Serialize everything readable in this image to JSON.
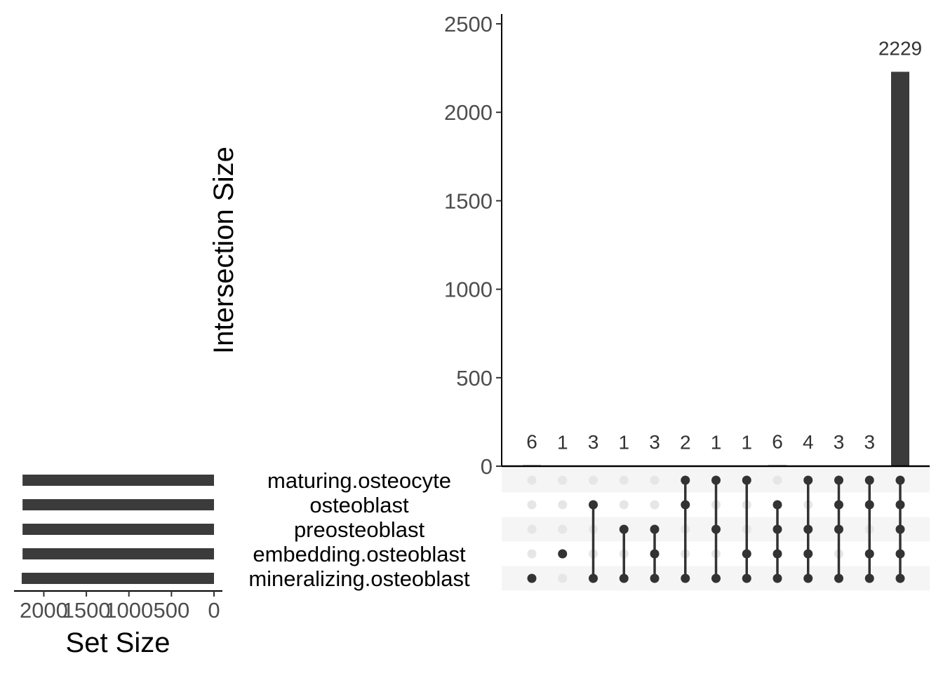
{
  "chart_data": {
    "type": "bar",
    "ylabel": "Intersection Size",
    "ylim": [
      0,
      2500
    ],
    "yticks": [
      0,
      500,
      1000,
      1500,
      2000,
      2500
    ],
    "sets": [
      "maturing.osteocyte",
      "osteoblast",
      "preosteoblast",
      "embedding.osteoblast",
      "mineralizing.osteoblast"
    ],
    "intersections": [
      {
        "members": [
          "mineralizing.osteoblast"
        ],
        "value": 6
      },
      {
        "members": [
          "embedding.osteoblast"
        ],
        "value": 1
      },
      {
        "members": [
          "osteoblast",
          "mineralizing.osteoblast"
        ],
        "value": 3
      },
      {
        "members": [
          "preosteoblast",
          "mineralizing.osteoblast"
        ],
        "value": 1
      },
      {
        "members": [
          "preosteoblast",
          "embedding.osteoblast",
          "mineralizing.osteoblast"
        ],
        "value": 3
      },
      {
        "members": [
          "maturing.osteocyte",
          "osteoblast",
          "mineralizing.osteoblast"
        ],
        "value": 2
      },
      {
        "members": [
          "maturing.osteocyte",
          "preosteoblast",
          "mineralizing.osteoblast"
        ],
        "value": 1
      },
      {
        "members": [
          "maturing.osteocyte",
          "embedding.osteoblast",
          "mineralizing.osteoblast"
        ],
        "value": 1
      },
      {
        "members": [
          "osteoblast",
          "preosteoblast",
          "embedding.osteoblast",
          "mineralizing.osteoblast"
        ],
        "value": 6
      },
      {
        "members": [
          "maturing.osteocyte",
          "preosteoblast",
          "embedding.osteoblast",
          "mineralizing.osteoblast"
        ],
        "value": 4
      },
      {
        "members": [
          "maturing.osteocyte",
          "osteoblast",
          "preosteoblast",
          "mineralizing.osteoblast"
        ],
        "value": 3
      },
      {
        "members": [
          "maturing.osteocyte",
          "osteoblast",
          "embedding.osteoblast",
          "mineralizing.osteoblast"
        ],
        "value": 3
      },
      {
        "members": [
          "maturing.osteocyte",
          "osteoblast",
          "preosteoblast",
          "embedding.osteoblast",
          "mineralizing.osteoblast"
        ],
        "value": 2229
      }
    ],
    "set_size": {
      "xlabel": "Set Size",
      "xlim": [
        2350,
        0
      ],
      "xticks": [
        2000,
        1500,
        1000,
        500,
        0
      ],
      "values": [
        2250,
        2250,
        2250,
        2250,
        2260
      ]
    },
    "colors": {
      "bar": "#3b3b3b",
      "dot_active": "#333333",
      "dot_inactive": "#e6e6e6",
      "stripe": "#f5f5f5"
    }
  }
}
